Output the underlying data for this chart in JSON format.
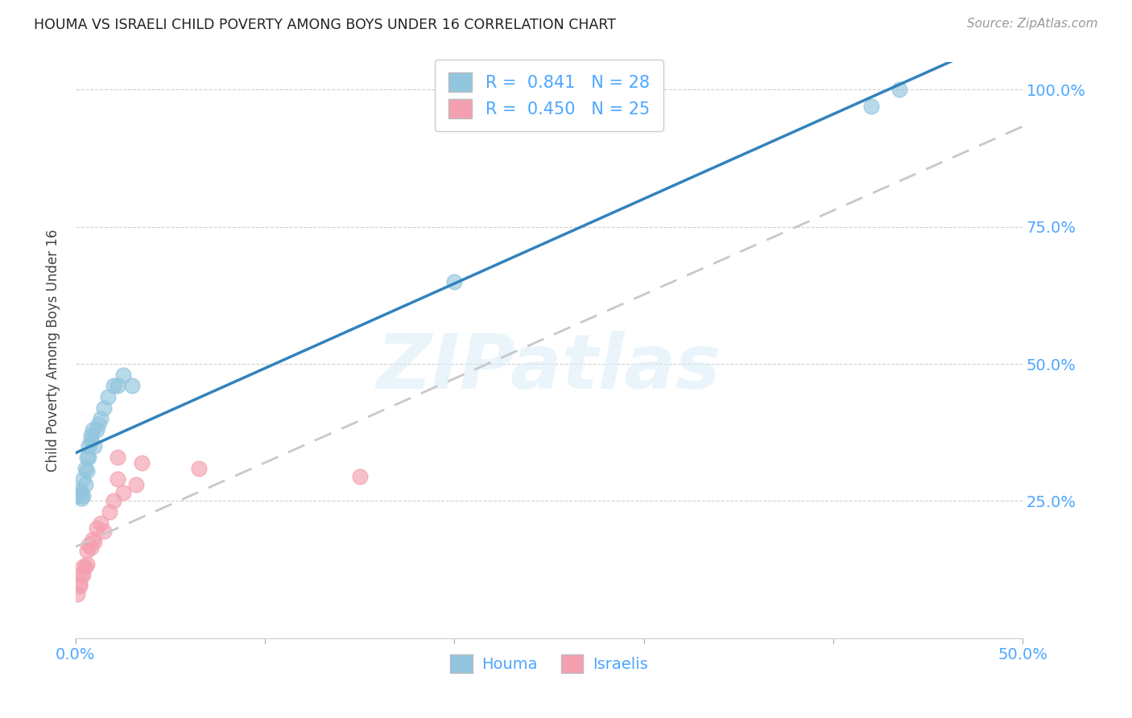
{
  "title": "HOUMA VS ISRAELI CHILD POVERTY AMONG BOYS UNDER 16 CORRELATION CHART",
  "source": "Source: ZipAtlas.com",
  "ylabel": "Child Poverty Among Boys Under 16",
  "xlabel_houma": "Houma",
  "xlabel_israelis": "Israelis",
  "xlim": [
    0.0,
    0.5
  ],
  "ylim": [
    0.0,
    1.05
  ],
  "xtick_positions": [
    0.0,
    0.1,
    0.2,
    0.3,
    0.4,
    0.5
  ],
  "xtick_labels": [
    "0.0%",
    "",
    "",
    "",
    "",
    "50.0%"
  ],
  "ytick_positions": [
    0.0,
    0.25,
    0.5,
    0.75,
    1.0
  ],
  "ytick_labels": [
    "",
    "25.0%",
    "50.0%",
    "75.0%",
    "100.0%"
  ],
  "houma_R": "0.841",
  "houma_N": "28",
  "israelis_R": "0.450",
  "israelis_N": "25",
  "houma_color": "#92c5de",
  "israelis_color": "#f4a0b0",
  "houma_line_color": "#3182bd",
  "israelis_line_color": "#c8c8c8",
  "watermark_text": "ZIPatlas",
  "tick_color": "#4da6ff",
  "legend_text_color": "#4da6ff",
  "houma_x": [
    0.001,
    0.002,
    0.003,
    0.003,
    0.004,
    0.004,
    0.005,
    0.005,
    0.006,
    0.006,
    0.007,
    0.007,
    0.008,
    0.008,
    0.009,
    0.01,
    0.011,
    0.012,
    0.013,
    0.015,
    0.017,
    0.02,
    0.022,
    0.025,
    0.03,
    0.2,
    0.42,
    0.435
  ],
  "houma_y": [
    0.26,
    0.27,
    0.255,
    0.265,
    0.26,
    0.29,
    0.28,
    0.31,
    0.305,
    0.33,
    0.33,
    0.35,
    0.36,
    0.37,
    0.38,
    0.35,
    0.38,
    0.39,
    0.4,
    0.42,
    0.44,
    0.46,
    0.46,
    0.48,
    0.46,
    0.65,
    0.97,
    1.0
  ],
  "israelis_x": [
    0.001,
    0.002,
    0.002,
    0.003,
    0.004,
    0.004,
    0.005,
    0.006,
    0.006,
    0.007,
    0.008,
    0.009,
    0.01,
    0.011,
    0.013,
    0.015,
    0.018,
    0.02,
    0.022,
    0.022,
    0.025,
    0.032,
    0.035,
    0.065,
    0.15
  ],
  "israelis_y": [
    0.08,
    0.095,
    0.1,
    0.115,
    0.115,
    0.13,
    0.13,
    0.135,
    0.16,
    0.17,
    0.165,
    0.18,
    0.175,
    0.2,
    0.21,
    0.195,
    0.23,
    0.25,
    0.29,
    0.33,
    0.265,
    0.28,
    0.32,
    0.31,
    0.295
  ]
}
